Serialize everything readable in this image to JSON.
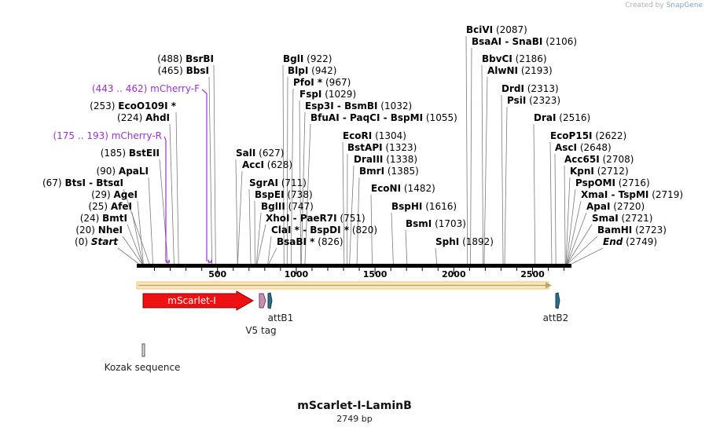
{
  "credit": {
    "prefix": "Created by",
    "brand": "SnapGene"
  },
  "title": "mScarlet-I-LaminB",
  "length_label": "2749 bp",
  "scale_ticks": [
    "500",
    "1000",
    "1500",
    "2000",
    "2500"
  ],
  "sites": [
    {
      "name": "Start",
      "pos": "(0)",
      "bp": 0
    },
    {
      "name": "NheI",
      "pos": "(20)",
      "bp": 20
    },
    {
      "name": "BmtI",
      "pos": "(24)",
      "bp": 24
    },
    {
      "name": "AfeI",
      "pos": "(25)",
      "bp": 25
    },
    {
      "name": "AgeI",
      "pos": "(29)",
      "bp": 29
    },
    {
      "name": "BtsI  -  BtsαI",
      "pos": "(67)",
      "bp": 67
    },
    {
      "name": "ApaLI",
      "pos": "(90)",
      "bp": 90
    },
    {
      "name": "BstEII",
      "pos": "(185)",
      "bp": 185
    },
    {
      "name": "AhdI",
      "pos": "(224)",
      "bp": 224
    },
    {
      "name": "EcoO109I *",
      "pos": "(253)",
      "bp": 253
    },
    {
      "name": "BbsI",
      "pos": "(465)",
      "bp": 465
    },
    {
      "name": "BsrBI",
      "pos": "(488)",
      "bp": 488
    },
    {
      "name": "SalI",
      "pos": "(627)",
      "bp": 627
    },
    {
      "name": "AccI",
      "pos": "(628)",
      "bp": 628
    },
    {
      "name": "SgrAI",
      "pos": "(711)",
      "bp": 711
    },
    {
      "name": "BspEI",
      "pos": "(738)",
      "bp": 738
    },
    {
      "name": "BglII",
      "pos": "(747)",
      "bp": 747
    },
    {
      "name": "XhoI  -  PaeR7I",
      "pos": "(751)",
      "bp": 751
    },
    {
      "name": "ClaI *  -  BspDI *",
      "pos": "(820)",
      "bp": 820
    },
    {
      "name": "BsaBI *",
      "pos": "(826)",
      "bp": 826
    },
    {
      "name": "BglI",
      "pos": "(922)",
      "bp": 922
    },
    {
      "name": "BlpI",
      "pos": "(942)",
      "bp": 942
    },
    {
      "name": "PfoI *",
      "pos": "(967)",
      "bp": 967
    },
    {
      "name": "FspI",
      "pos": "(1029)",
      "bp": 1029
    },
    {
      "name": "Esp3I  -  BsmBI",
      "pos": "(1032)",
      "bp": 1032
    },
    {
      "name": "BfuAI  -  PaqCI  -  BspMI",
      "pos": "(1055)",
      "bp": 1055
    },
    {
      "name": "EcoRI",
      "pos": "(1304)",
      "bp": 1304
    },
    {
      "name": "BstAPI",
      "pos": "(1323)",
      "bp": 1323
    },
    {
      "name": "DraIII",
      "pos": "(1338)",
      "bp": 1338
    },
    {
      "name": "BmrI",
      "pos": "(1385)",
      "bp": 1385
    },
    {
      "name": "EcoNI",
      "pos": "(1482)",
      "bp": 1482
    },
    {
      "name": "BspHI",
      "pos": "(1616)",
      "bp": 1616
    },
    {
      "name": "BsmI",
      "pos": "(1703)",
      "bp": 1703
    },
    {
      "name": "SphI",
      "pos": "(1892)",
      "bp": 1892
    },
    {
      "name": "BciVI",
      "pos": "(2087)",
      "bp": 2087
    },
    {
      "name": "BsaAI  -  SnaBI",
      "pos": "(2106)",
      "bp": 2106
    },
    {
      "name": "BbvCI",
      "pos": "(2186)",
      "bp": 2186
    },
    {
      "name": "AlwNI",
      "pos": "(2193)",
      "bp": 2193
    },
    {
      "name": "DrdI",
      "pos": "(2313)",
      "bp": 2313
    },
    {
      "name": "PsiI",
      "pos": "(2323)",
      "bp": 2323
    },
    {
      "name": "DraI",
      "pos": "(2516)",
      "bp": 2516
    },
    {
      "name": "EcoP15I",
      "pos": "(2622)",
      "bp": 2622
    },
    {
      "name": "AscI",
      "pos": "(2648)",
      "bp": 2648
    },
    {
      "name": "Acc65I",
      "pos": "(2708)",
      "bp": 2708
    },
    {
      "name": "KpnI",
      "pos": "(2712)",
      "bp": 2712
    },
    {
      "name": "PspOMI",
      "pos": "(2716)",
      "bp": 2716
    },
    {
      "name": "XmaI  -  TspMI",
      "pos": "(2719)",
      "bp": 2719
    },
    {
      "name": "ApaI",
      "pos": "(2720)",
      "bp": 2720
    },
    {
      "name": "SmaI",
      "pos": "(2721)",
      "bp": 2721
    },
    {
      "name": "BamHI",
      "pos": "(2723)",
      "bp": 2723
    },
    {
      "name": "End",
      "pos": "(2749)",
      "bp": 2749
    }
  ],
  "primers": [
    {
      "name": "mCherry-R",
      "range": "(175 .. 193)",
      "start": 175,
      "end": 193
    },
    {
      "name": "mCherry-F",
      "range": "(443 .. 462)",
      "start": 443,
      "end": 462
    }
  ],
  "features": {
    "mscarlet": "mScarlet-I",
    "v5": "V5 tag",
    "attb1": "attB1",
    "attb2": "attB2",
    "kozak": "Kozak sequence"
  },
  "colors": {
    "mscarlet": "#ee1111",
    "v5": "#c890b4",
    "att": "#2e6e8a",
    "orf": "#f6b24a",
    "primer": "#9b30d9"
  }
}
